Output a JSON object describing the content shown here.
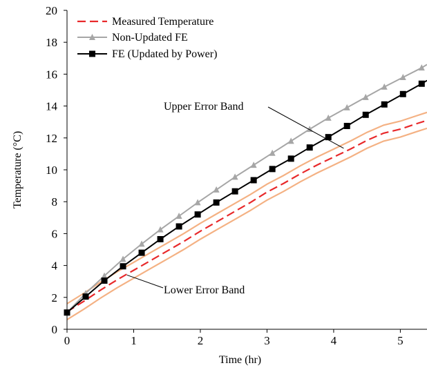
{
  "chart_data": {
    "type": "line",
    "xlabel": "Time  (hr)",
    "ylabel": "Temperature  (°C)",
    "xlim": [
      0,
      5.4
    ],
    "ylim": [
      0,
      20
    ],
    "xticks": [
      "0",
      "1",
      "2",
      "3",
      "4",
      "5"
    ],
    "yticks": [
      "0",
      "2",
      "4",
      "6",
      "8",
      "10",
      "12",
      "14",
      "16",
      "18",
      "20"
    ],
    "grid": false,
    "legend_position": "top-left",
    "series": [
      {
        "name": "Measured Temperature",
        "color": "#e8282a",
        "style": "dashed",
        "marker": "none",
        "x": [
          0,
          0.25,
          0.5,
          0.75,
          1.0,
          1.25,
          1.5,
          1.75,
          2.0,
          2.25,
          2.5,
          2.75,
          3.0,
          3.25,
          3.5,
          3.75,
          4.0,
          4.25,
          4.5,
          4.75,
          5.0,
          5.25,
          5.4
        ],
        "y": [
          1.1,
          1.75,
          2.45,
          3.1,
          3.7,
          4.3,
          4.9,
          5.5,
          6.15,
          6.75,
          7.35,
          7.95,
          8.6,
          9.15,
          9.75,
          10.3,
          10.8,
          11.3,
          11.85,
          12.3,
          12.55,
          12.9,
          13.1
        ]
      },
      {
        "name": "Non-Updated FE",
        "color": "#a6a6a6",
        "style": "solid",
        "marker": "triangle",
        "x": [
          0,
          0.28,
          0.56,
          0.84,
          1.12,
          1.4,
          1.68,
          1.96,
          2.24,
          2.52,
          2.8,
          3.08,
          3.36,
          3.64,
          3.92,
          4.2,
          4.48,
          4.76,
          5.04,
          5.32,
          5.4
        ],
        "y": [
          1.05,
          2.25,
          3.35,
          4.4,
          5.35,
          6.25,
          7.1,
          7.95,
          8.75,
          9.55,
          10.3,
          11.05,
          11.8,
          12.55,
          13.25,
          13.9,
          14.55,
          15.2,
          15.8,
          16.4,
          16.6
        ]
      },
      {
        "name": "FE (Updated by Power)",
        "color": "#000000",
        "style": "solid",
        "marker": "square",
        "x": [
          0,
          0.28,
          0.56,
          0.84,
          1.12,
          1.4,
          1.68,
          1.96,
          2.24,
          2.52,
          2.8,
          3.08,
          3.36,
          3.64,
          3.92,
          4.2,
          4.48,
          4.76,
          5.04,
          5.32,
          5.4
        ],
        "y": [
          1.05,
          2.05,
          3.05,
          3.95,
          4.8,
          5.65,
          6.45,
          7.2,
          7.95,
          8.65,
          9.35,
          10.05,
          10.7,
          11.4,
          12.05,
          12.75,
          13.45,
          14.1,
          14.75,
          15.4,
          15.6
        ]
      },
      {
        "color": "#f4b183",
        "style": "solid",
        "marker": "none",
        "x": [
          0,
          0.25,
          0.5,
          0.75,
          1.0,
          1.25,
          1.5,
          1.75,
          2.0,
          2.25,
          2.5,
          2.75,
          3.0,
          3.25,
          3.5,
          3.75,
          4.0,
          4.25,
          4.5,
          4.75,
          5.0,
          5.25,
          5.4
        ],
        "y": [
          1.6,
          2.25,
          2.95,
          3.6,
          4.2,
          4.8,
          5.4,
          6.0,
          6.65,
          7.25,
          7.85,
          8.45,
          9.1,
          9.65,
          10.25,
          10.8,
          11.3,
          11.8,
          12.35,
          12.8,
          13.05,
          13.4,
          13.6
        ]
      },
      {
        "color": "#f4b183",
        "style": "solid",
        "marker": "none",
        "x": [
          0,
          0.25,
          0.5,
          0.75,
          1.0,
          1.25,
          1.5,
          1.75,
          2.0,
          2.25,
          2.5,
          2.75,
          3.0,
          3.25,
          3.5,
          3.75,
          4.0,
          4.25,
          4.5,
          4.75,
          5.0,
          5.25,
          5.4
        ],
        "y": [
          0.6,
          1.25,
          1.95,
          2.6,
          3.2,
          3.8,
          4.4,
          5.0,
          5.65,
          6.25,
          6.85,
          7.45,
          8.1,
          8.65,
          9.25,
          9.8,
          10.3,
          10.8,
          11.35,
          11.8,
          12.05,
          12.4,
          12.6
        ]
      }
    ],
    "annotations": [
      {
        "text": "Upper Error Band",
        "x": 1.45,
        "y": 14.0,
        "arrow_to": [
          4.15,
          11.35
        ]
      },
      {
        "text": "Lower Error Band",
        "x": 1.45,
        "y": 2.5,
        "arrow_to": [
          0.9,
          3.4
        ]
      }
    ]
  }
}
